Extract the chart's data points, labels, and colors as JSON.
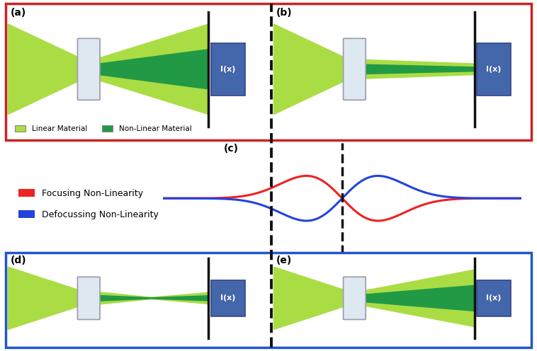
{
  "fig_width": 7.58,
  "fig_height": 4.96,
  "dpi": 100,
  "bg_color": "#ffffff",
  "light_green": "#aadd44",
  "dark_green": "#229944",
  "box_outline_red": "#cc2222",
  "box_outline_blue": "#2255cc",
  "lens_color": "#dde8f0",
  "lens_border": "#999aaa",
  "detector_color": "#4466aa",
  "detector_text": "I(x)",
  "screen_color": "#111111",
  "red_curve": "#ee2222",
  "blue_curve": "#2244dd",
  "legend_red": "Focusing Non-Linearity",
  "legend_blue": "Defocussing Non-Linearity",
  "legend_lm": "Linear Material",
  "legend_nlm": "Non-Linear Material",
  "dashed_color": "#111111",
  "panel_labels": [
    "(a)",
    "(b)",
    "(c)",
    "(d)",
    "(e)"
  ]
}
